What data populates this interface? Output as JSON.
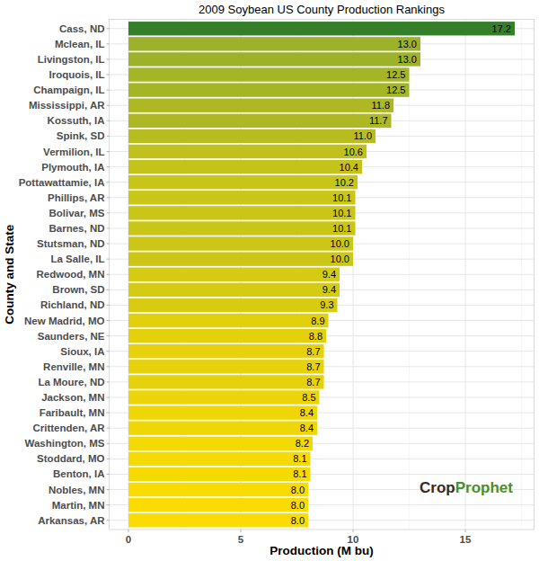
{
  "chart_data": {
    "type": "bar",
    "orientation": "horizontal",
    "title": "2009 Soybean US County Production Rankings",
    "x_label": "Production (M bu)",
    "y_label": "County and State",
    "categories": [
      "Cass, ND",
      "Mclean, IL",
      "Livingston, IL",
      "Iroquois, IL",
      "Champaign, IL",
      "Mississippi, AR",
      "Kossuth, IA",
      "Spink, SD",
      "Vermilion, IL",
      "Plymouth, IA",
      "Pottawattamie, IA",
      "Phillips, AR",
      "Bolivar, MS",
      "Barnes, ND",
      "Stutsman, ND",
      "La Salle, IL",
      "Redwood, MN",
      "Brown, SD",
      "Richland, ND",
      "New Madrid, MO",
      "Saunders, NE",
      "Sioux, IA",
      "Renville, MN",
      "La Moure, ND",
      "Jackson, MN",
      "Faribault, MN",
      "Crittenden, AR",
      "Washington, MS",
      "Stoddard, MO",
      "Benton, IA",
      "Nobles, MN",
      "Martin, MN",
      "Arkansas, AR"
    ],
    "values": [
      17.2,
      13.0,
      13.0,
      12.5,
      12.5,
      11.8,
      11.7,
      11.0,
      10.6,
      10.4,
      10.2,
      10.1,
      10.1,
      10.1,
      10.0,
      10.0,
      9.4,
      9.4,
      9.3,
      8.9,
      8.8,
      8.7,
      8.7,
      8.7,
      8.5,
      8.4,
      8.4,
      8.2,
      8.1,
      8.1,
      8.0,
      8.0,
      8.0
    ],
    "value_labels": [
      "17.2",
      "13.0",
      "13.0",
      "12.5",
      "12.5",
      "11.8",
      "11.7",
      "11.0",
      "10.6",
      "10.4",
      "10.2",
      "10.1",
      "10.1",
      "10.1",
      "10.0",
      "10.0",
      "9.4",
      "9.4",
      "9.3",
      "8.9",
      "8.8",
      "8.7",
      "8.7",
      "8.7",
      "8.5",
      "8.4",
      "8.4",
      "8.2",
      "8.1",
      "8.1",
      "8.0",
      "8.0",
      "8.0"
    ],
    "colors": [
      "#357f2b",
      "#9db22a",
      "#9db22a",
      "#a4b526",
      "#a4b526",
      "#adb823",
      "#aeb823",
      "#b8bd1f",
      "#c0c11c",
      "#c4c31b",
      "#c8c519",
      "#cac618",
      "#cac618",
      "#cac618",
      "#ccc717",
      "#ccc717",
      "#d6cb13",
      "#d6cb13",
      "#d8cc12",
      "#e2d00d",
      "#e4d10c",
      "#e6d20b",
      "#e6d20b",
      "#e6d20b",
      "#ebd509",
      "#eed607",
      "#eed607",
      "#f3d905",
      "#f6da04",
      "#f6da04",
      "#fadc02",
      "#fadc02",
      "#fadc02"
    ],
    "xlim": [
      -0.86,
      18.06
    ],
    "xticks": [
      0,
      5,
      10,
      15
    ],
    "grid": true,
    "data_labels": true,
    "annotations": [
      "Crop",
      "Prophet"
    ]
  }
}
